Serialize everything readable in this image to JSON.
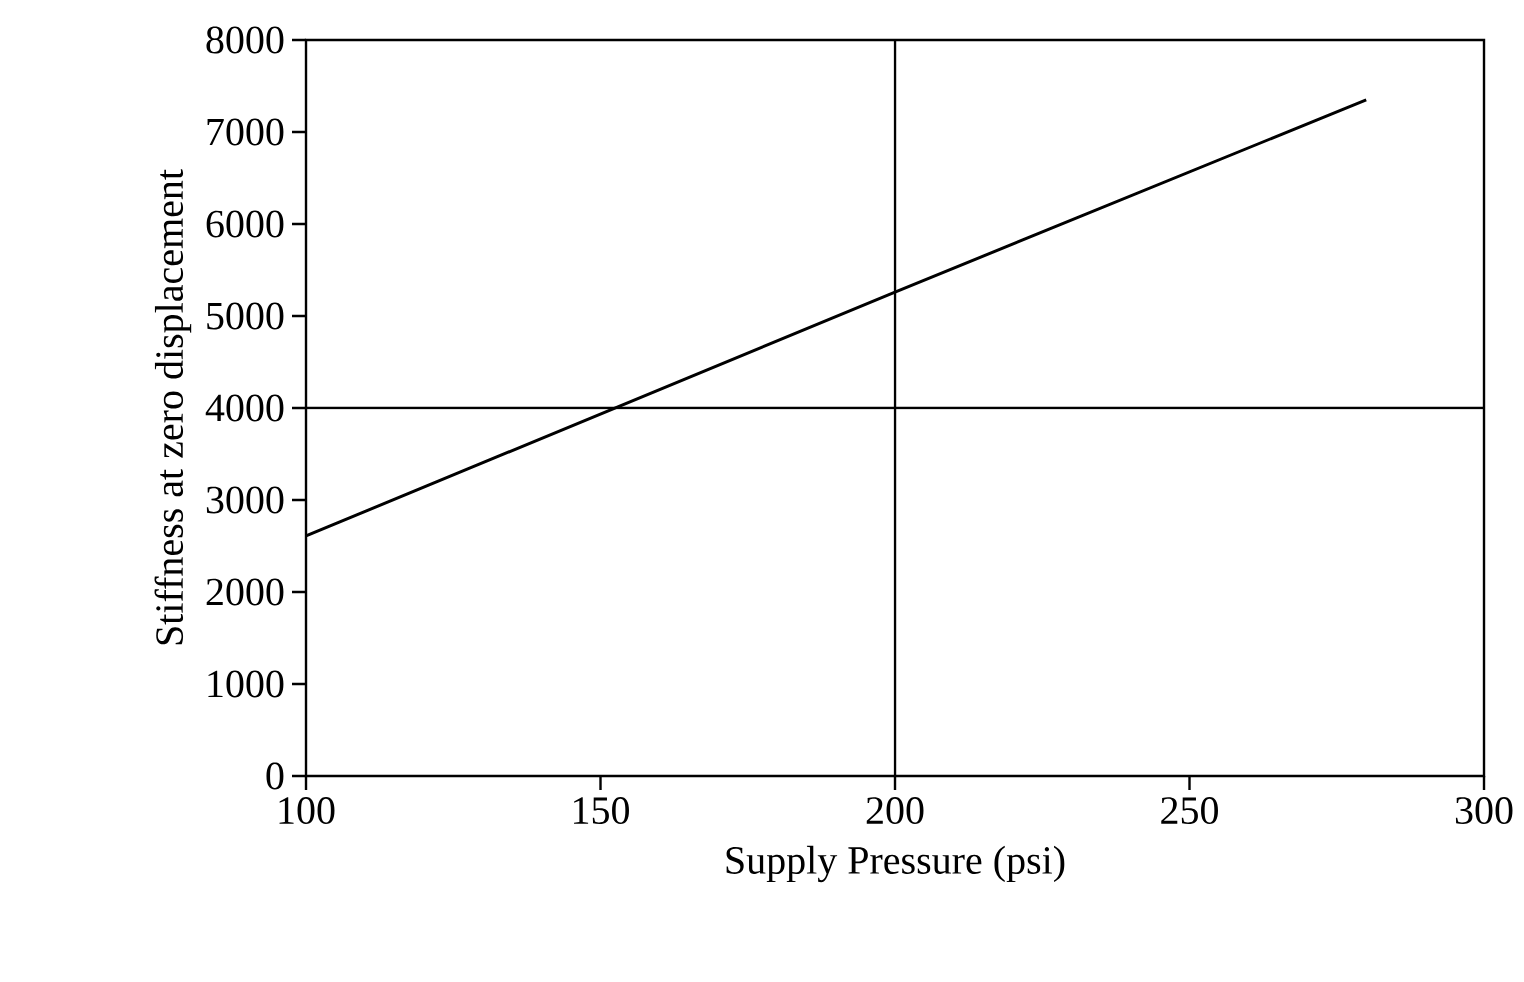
{
  "chart_data": {
    "type": "line",
    "xlabel": "Supply Pressure (psi)",
    "ylabel": "Stiffness at zero displacement",
    "x": [
      100,
      200,
      280
    ],
    "series": [
      {
        "color": "#000000",
        "values": [
          2610,
          5260,
          7350
        ]
      }
    ],
    "xlim": [
      100,
      300
    ],
    "xticks": [
      100,
      150,
      200,
      250,
      300
    ],
    "ylim": [
      0,
      8000
    ],
    "yticks": [
      0,
      1000,
      2000,
      3000,
      4000,
      5000,
      6000,
      7000,
      8000
    ],
    "ref_lines": [
      {
        "axis": "x",
        "value": 200,
        "color": "#000000"
      },
      {
        "axis": "y",
        "value": 4000,
        "color": "#000000"
      }
    ],
    "grid": false,
    "marker": "none",
    "line_style": "solid"
  }
}
